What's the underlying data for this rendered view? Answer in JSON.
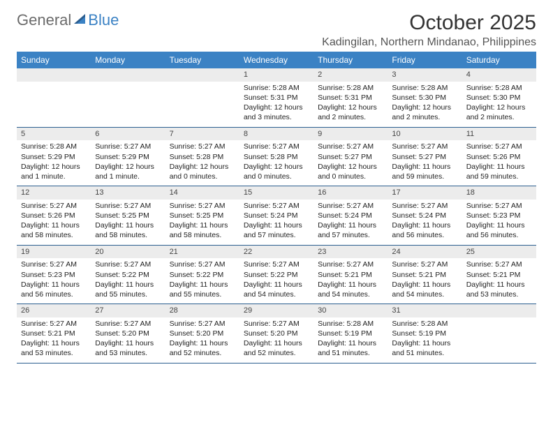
{
  "brand": {
    "part1": "General",
    "part2": "Blue",
    "sail_color": "#2a5d8f"
  },
  "title": "October 2025",
  "location": "Kadingilan, Northern Mindanao, Philippines",
  "colors": {
    "header_bg": "#3b82c4",
    "header_text": "#ffffff",
    "daynum_bg": "#ececec",
    "rule": "#2a5d8f",
    "text": "#222222"
  },
  "dows": [
    "Sunday",
    "Monday",
    "Tuesday",
    "Wednesday",
    "Thursday",
    "Friday",
    "Saturday"
  ],
  "weeks": [
    [
      null,
      null,
      null,
      {
        "n": "1",
        "sr": "Sunrise: 5:28 AM",
        "ss": "Sunset: 5:31 PM",
        "dl": "Daylight: 12 hours and 3 minutes."
      },
      {
        "n": "2",
        "sr": "Sunrise: 5:28 AM",
        "ss": "Sunset: 5:31 PM",
        "dl": "Daylight: 12 hours and 2 minutes."
      },
      {
        "n": "3",
        "sr": "Sunrise: 5:28 AM",
        "ss": "Sunset: 5:30 PM",
        "dl": "Daylight: 12 hours and 2 minutes."
      },
      {
        "n": "4",
        "sr": "Sunrise: 5:28 AM",
        "ss": "Sunset: 5:30 PM",
        "dl": "Daylight: 12 hours and 2 minutes."
      }
    ],
    [
      {
        "n": "5",
        "sr": "Sunrise: 5:28 AM",
        "ss": "Sunset: 5:29 PM",
        "dl": "Daylight: 12 hours and 1 minute."
      },
      {
        "n": "6",
        "sr": "Sunrise: 5:27 AM",
        "ss": "Sunset: 5:29 PM",
        "dl": "Daylight: 12 hours and 1 minute."
      },
      {
        "n": "7",
        "sr": "Sunrise: 5:27 AM",
        "ss": "Sunset: 5:28 PM",
        "dl": "Daylight: 12 hours and 0 minutes."
      },
      {
        "n": "8",
        "sr": "Sunrise: 5:27 AM",
        "ss": "Sunset: 5:28 PM",
        "dl": "Daylight: 12 hours and 0 minutes."
      },
      {
        "n": "9",
        "sr": "Sunrise: 5:27 AM",
        "ss": "Sunset: 5:27 PM",
        "dl": "Daylight: 12 hours and 0 minutes."
      },
      {
        "n": "10",
        "sr": "Sunrise: 5:27 AM",
        "ss": "Sunset: 5:27 PM",
        "dl": "Daylight: 11 hours and 59 minutes."
      },
      {
        "n": "11",
        "sr": "Sunrise: 5:27 AM",
        "ss": "Sunset: 5:26 PM",
        "dl": "Daylight: 11 hours and 59 minutes."
      }
    ],
    [
      {
        "n": "12",
        "sr": "Sunrise: 5:27 AM",
        "ss": "Sunset: 5:26 PM",
        "dl": "Daylight: 11 hours and 58 minutes."
      },
      {
        "n": "13",
        "sr": "Sunrise: 5:27 AM",
        "ss": "Sunset: 5:25 PM",
        "dl": "Daylight: 11 hours and 58 minutes."
      },
      {
        "n": "14",
        "sr": "Sunrise: 5:27 AM",
        "ss": "Sunset: 5:25 PM",
        "dl": "Daylight: 11 hours and 58 minutes."
      },
      {
        "n": "15",
        "sr": "Sunrise: 5:27 AM",
        "ss": "Sunset: 5:24 PM",
        "dl": "Daylight: 11 hours and 57 minutes."
      },
      {
        "n": "16",
        "sr": "Sunrise: 5:27 AM",
        "ss": "Sunset: 5:24 PM",
        "dl": "Daylight: 11 hours and 57 minutes."
      },
      {
        "n": "17",
        "sr": "Sunrise: 5:27 AM",
        "ss": "Sunset: 5:24 PM",
        "dl": "Daylight: 11 hours and 56 minutes."
      },
      {
        "n": "18",
        "sr": "Sunrise: 5:27 AM",
        "ss": "Sunset: 5:23 PM",
        "dl": "Daylight: 11 hours and 56 minutes."
      }
    ],
    [
      {
        "n": "19",
        "sr": "Sunrise: 5:27 AM",
        "ss": "Sunset: 5:23 PM",
        "dl": "Daylight: 11 hours and 56 minutes."
      },
      {
        "n": "20",
        "sr": "Sunrise: 5:27 AM",
        "ss": "Sunset: 5:22 PM",
        "dl": "Daylight: 11 hours and 55 minutes."
      },
      {
        "n": "21",
        "sr": "Sunrise: 5:27 AM",
        "ss": "Sunset: 5:22 PM",
        "dl": "Daylight: 11 hours and 55 minutes."
      },
      {
        "n": "22",
        "sr": "Sunrise: 5:27 AM",
        "ss": "Sunset: 5:22 PM",
        "dl": "Daylight: 11 hours and 54 minutes."
      },
      {
        "n": "23",
        "sr": "Sunrise: 5:27 AM",
        "ss": "Sunset: 5:21 PM",
        "dl": "Daylight: 11 hours and 54 minutes."
      },
      {
        "n": "24",
        "sr": "Sunrise: 5:27 AM",
        "ss": "Sunset: 5:21 PM",
        "dl": "Daylight: 11 hours and 54 minutes."
      },
      {
        "n": "25",
        "sr": "Sunrise: 5:27 AM",
        "ss": "Sunset: 5:21 PM",
        "dl": "Daylight: 11 hours and 53 minutes."
      }
    ],
    [
      {
        "n": "26",
        "sr": "Sunrise: 5:27 AM",
        "ss": "Sunset: 5:21 PM",
        "dl": "Daylight: 11 hours and 53 minutes."
      },
      {
        "n": "27",
        "sr": "Sunrise: 5:27 AM",
        "ss": "Sunset: 5:20 PM",
        "dl": "Daylight: 11 hours and 53 minutes."
      },
      {
        "n": "28",
        "sr": "Sunrise: 5:27 AM",
        "ss": "Sunset: 5:20 PM",
        "dl": "Daylight: 11 hours and 52 minutes."
      },
      {
        "n": "29",
        "sr": "Sunrise: 5:27 AM",
        "ss": "Sunset: 5:20 PM",
        "dl": "Daylight: 11 hours and 52 minutes."
      },
      {
        "n": "30",
        "sr": "Sunrise: 5:28 AM",
        "ss": "Sunset: 5:19 PM",
        "dl": "Daylight: 11 hours and 51 minutes."
      },
      {
        "n": "31",
        "sr": "Sunrise: 5:28 AM",
        "ss": "Sunset: 5:19 PM",
        "dl": "Daylight: 11 hours and 51 minutes."
      },
      null
    ]
  ]
}
